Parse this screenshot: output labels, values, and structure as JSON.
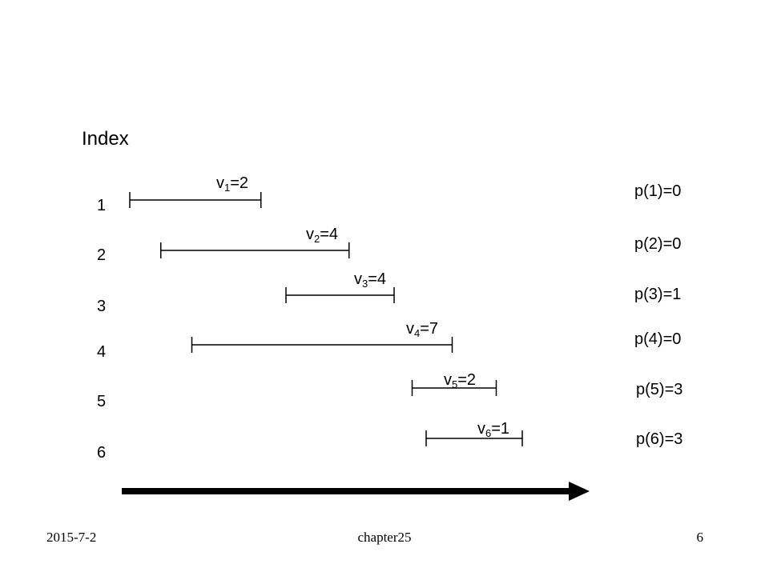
{
  "heading": "Index",
  "jobs": [
    {
      "index": "1",
      "v_letter": "v",
      "v_sub": "1",
      "v_value": "=2",
      "start": 0,
      "end": 6.55,
      "p_label": "p(1)=0"
    },
    {
      "index": "2",
      "v_letter": "v",
      "v_sub": "2",
      "v_value": "=4",
      "start": 1.55,
      "end": 10.95,
      "p_label": "p(2)=0"
    },
    {
      "index": "3",
      "v_letter": "v",
      "v_sub": "3",
      "v_value": "=4",
      "start": 7.8,
      "end": 13.2,
      "p_label": "p(3)=1"
    },
    {
      "index": "4",
      "v_letter": "v",
      "v_sub": "4",
      "v_value": "=7",
      "start": 3.1,
      "end": 16.1,
      "p_label": "p(4)=0"
    },
    {
      "index": "5",
      "v_letter": "v",
      "v_sub": "5",
      "v_value": "=2",
      "start": 14.1,
      "end": 18.3,
      "p_label": "p(5)=3"
    },
    {
      "index": "6",
      "v_letter": "v",
      "v_sub": "6",
      "v_value": "=1",
      "start": 14.8,
      "end": 19.6,
      "p_label": "p(6)=3"
    }
  ],
  "time_axis": {
    "arrow": "right-arrow"
  },
  "footer": {
    "date": "2015-7-2",
    "title": "chapter25",
    "page": "6"
  },
  "colors": {
    "ink": "#000000",
    "background": "#ffffff"
  }
}
